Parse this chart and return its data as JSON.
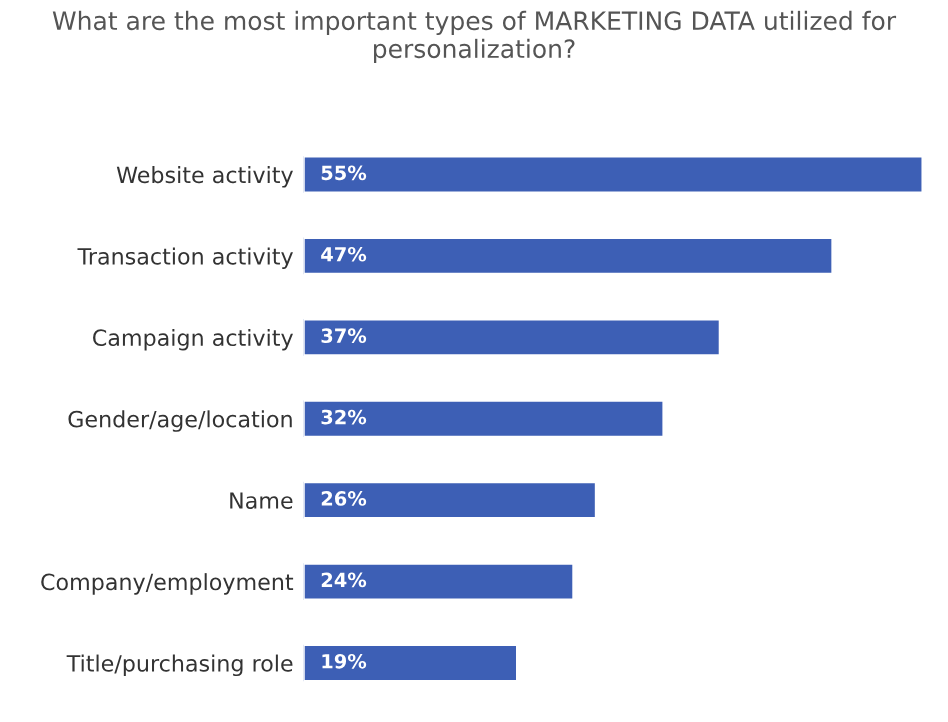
{
  "chart_data": {
    "type": "bar",
    "orientation": "horizontal",
    "title": "What are the most important types of MARKETING DATA utilized for personalization?",
    "categories": [
      "Website activity",
      "Transaction activity",
      "Campaign activity",
      "Gender/age/location",
      "Name",
      "Company/employment",
      "Title/purchasing role"
    ],
    "values": [
      55,
      47,
      37,
      32,
      26,
      24,
      19
    ],
    "value_labels": [
      "55%",
      "47%",
      "37%",
      "32%",
      "26%",
      "24%",
      "19%"
    ],
    "color": "#3d5fb5"
  }
}
